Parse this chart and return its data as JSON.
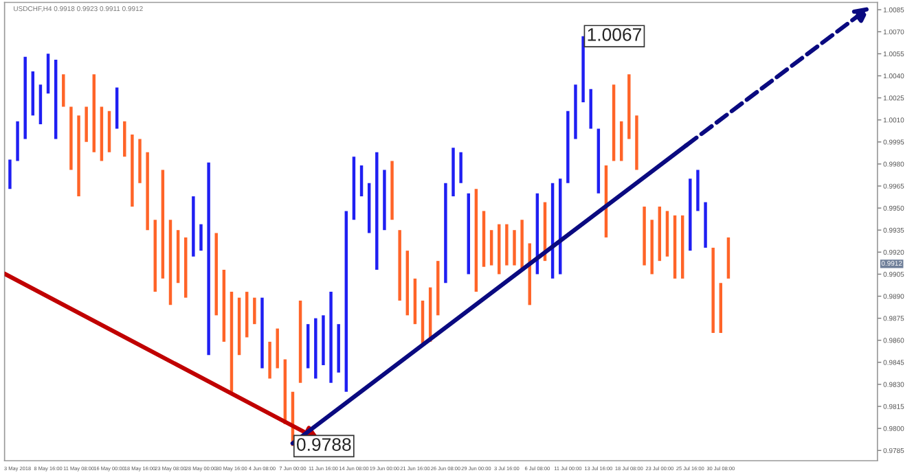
{
  "chart_data": {
    "type": "bar",
    "title": "USDCHF,H4 0.9918 0.9923 0.9911 0.9912",
    "categories": [
      null,
      "3 May 2018",
      null,
      null,
      null,
      "8 May 16:00",
      null,
      null,
      null,
      "11 May 08:00",
      null,
      null,
      null,
      "16 May 00:00",
      null,
      null,
      null,
      "18 May 16:00",
      null,
      null,
      null,
      "23 May 08:00",
      null,
      null,
      null,
      "28 May 00:00",
      null,
      null,
      null,
      "30 May 16:00",
      null,
      null,
      null,
      "4 Jun 08:00",
      null,
      null,
      null,
      "7 Jun 00:00",
      null,
      null,
      null,
      "11 Jun 16:00",
      null,
      null,
      null,
      "14 Jun 08:00",
      null,
      null,
      null,
      "19 Jun 00:00",
      null,
      null,
      null,
      "21 Jun 16:00",
      null,
      null,
      null,
      "26 Jun 08:00",
      null,
      null,
      null,
      "29 Jun 00:00",
      null,
      null,
      null,
      "3 Jul 16:00",
      null,
      null,
      null,
      "6 Jul 08:00",
      null,
      null,
      null,
      "11 Jul 00:00",
      null,
      null,
      null,
      "13 Jul 16:00",
      null,
      null,
      null,
      "18 Jul 08:00",
      null,
      null,
      null,
      "23 Jul 00:00",
      null,
      null,
      null,
      "25 Jul 16:00",
      null,
      null,
      null,
      "30 Jul 08:00",
      null,
      null,
      null,
      null,
      null,
      null,
      null,
      null,
      null,
      null,
      null,
      null,
      null,
      null,
      null,
      null,
      null,
      null,
      null,
      null
    ],
    "series": [
      {
        "base": [
          0.9963,
          0.9982,
          0.9997,
          1.0013,
          1.0007,
          1.0028,
          0.9997,
          1.0019,
          0.9976,
          0.9958,
          0.9995,
          0.9988,
          0.9982,
          0.9988,
          1.0004,
          0.9985,
          0.9951,
          0.9967,
          0.9935,
          0.9893,
          0.9902,
          0.9884,
          0.9899,
          0.9889,
          0.9917,
          0.9921,
          0.985,
          0.9877,
          0.9859,
          0.9825,
          0.985,
          0.9862,
          0.9871,
          0.9841,
          0.9834,
          0.9841,
          0.9803,
          0.9788,
          0.9831,
          0.9841,
          0.9834,
          0.9843,
          0.9831,
          0.9838,
          0.9825,
          0.9942,
          0.9958,
          0.9933,
          0.9908,
          0.9935,
          0.9942,
          0.9887,
          0.9877,
          0.9871,
          0.9856,
          0.9859,
          0.9877,
          0.9899,
          0.9958,
          0.9967,
          0.9905,
          0.9893,
          0.991,
          0.9911,
          0.9905,
          0.9911,
          0.9911,
          0.9908,
          0.9884,
          0.9905,
          0.9914,
          0.9902,
          0.9905,
          0.9967,
          0.9997,
          1.0022,
          1.0004,
          0.996,
          0.993,
          0.9982,
          0.9982,
          0.9997,
          0.9976,
          0.9911,
          0.9905,
          0.9914,
          0.9917,
          0.9902,
          0.9902,
          0.9921,
          0.9948,
          0.9923,
          0.9865,
          0.9865,
          0.9902,
          null,
          null,
          null,
          null,
          null,
          null,
          null,
          null,
          null,
          null,
          null,
          null,
          null,
          null,
          null,
          null,
          null,
          null,
          null
        ],
        "values": [
          0.002,
          0.0027,
          0.0056,
          0.003,
          0.0027,
          0.0027,
          0.0054,
          0.0022,
          0.0043,
          0.0055,
          0.0024,
          0.0053,
          0.0037,
          0.0028,
          0.0028,
          0.0024,
          0.0049,
          0.003,
          0.0053,
          0.0049,
          0.0074,
          0.0058,
          0.0036,
          0.0041,
          0.0041,
          0.0018,
          0.0131,
          0.0056,
          0.0049,
          0.0068,
          0.0039,
          0.0031,
          0.0018,
          0.0048,
          0.0025,
          0.0027,
          0.0044,
          0.0037,
          0.0056,
          0.003,
          0.0041,
          0.0034,
          0.0062,
          0.0033,
          0.0123,
          0.0043,
          0.0021,
          0.0034,
          0.008,
          0.0041,
          0.004,
          0.0048,
          0.0044,
          0.0031,
          0.0031,
          0.0037,
          0.0037,
          0.0068,
          0.0033,
          0.0021,
          0.0055,
          0.007,
          0.0038,
          0.0024,
          0.0034,
          0.0028,
          0.0024,
          0.0034,
          0.0042,
          0.0055,
          0.004,
          0.0065,
          0.0065,
          0.0049,
          0.0037,
          0.0045,
          0.0027,
          0.0044,
          0.0049,
          0.0052,
          0.0027,
          0.0044,
          0.0037,
          0.004,
          0.0037,
          0.0037,
          0.0031,
          0.0043,
          0.0043,
          0.0049,
          0.0028,
          0.0031,
          0.0058,
          0.0034,
          0.0028,
          null,
          null,
          null,
          null,
          null,
          null,
          null,
          null,
          null,
          null,
          null,
          null,
          null,
          null,
          null,
          null,
          null,
          null,
          null
        ],
        "colors": [
          "#1f1ff2",
          "#1f1ff2",
          "#1f1ff2",
          "#1f1ff2",
          "#1f1ff2",
          "#1f1ff2",
          "#1f1ff2",
          "#ff6428",
          "#ff6428",
          "#ff6428",
          "#ff6428",
          "#ff6428",
          "#ff6428",
          "#ff6428",
          "#1f1ff2",
          "#ff6428",
          "#ff6428",
          "#ff6428",
          "#ff6428",
          "#ff6428",
          "#ff6428",
          "#ff6428",
          "#ff6428",
          "#ff6428",
          "#1f1ff2",
          "#1f1ff2",
          "#1f1ff2",
          "#ff6428",
          "#ff6428",
          "#ff6428",
          "#ff6428",
          "#ff6428",
          "#ff6428",
          "#1f1ff2",
          "#ff6428",
          "#ff6428",
          "#ff6428",
          "#ff6428",
          "#ff6428",
          "#1f1ff2",
          "#1f1ff2",
          "#1f1ff2",
          "#1f1ff2",
          "#1f1ff2",
          "#1f1ff2",
          "#1f1ff2",
          "#1f1ff2",
          "#1f1ff2",
          "#1f1ff2",
          "#1f1ff2",
          "#ff6428",
          "#ff6428",
          "#ff6428",
          "#ff6428",
          "#ff6428",
          "#ff6428",
          "#ff6428",
          "#1f1ff2",
          "#1f1ff2",
          "#1f1ff2",
          "#1f1ff2",
          "#ff6428",
          "#ff6428",
          "#ff6428",
          "#ff6428",
          "#ff6428",
          "#ff6428",
          "#ff6428",
          "#ff6428",
          "#1f1ff2",
          "#ff6428",
          "#1f1ff2",
          "#1f1ff2",
          "#1f1ff2",
          "#1f1ff2",
          "#1f1ff2",
          "#1f1ff2",
          "#1f1ff2",
          "#ff6428",
          "#ff6428",
          "#ff6428",
          "#ff6428",
          "#ff6428",
          "#ff6428",
          "#ff6428",
          "#ff6428",
          "#ff6428",
          "#ff6428",
          "#ff6428",
          "#1f1ff2",
          "#1f1ff2",
          "#1f1ff2",
          "#ff6428",
          "#ff6428",
          "#ff6428",
          null,
          null,
          null,
          null,
          null,
          null,
          null,
          null,
          null,
          null,
          null,
          null,
          null,
          null,
          null,
          null,
          null,
          null,
          null
        ]
      }
    ],
    "ylim": [
      0.9778,
      1.009
    ],
    "yticks": [
      1.0085,
      {
        "value": 1.007,
        "label": "1.0070"
      },
      1.0055,
      {
        "value": 1.004,
        "label": "1.0040"
      },
      1.0025,
      {
        "value": 1.001,
        "label": "1.0010"
      },
      0.9995,
      {
        "value": 0.998,
        "label": "0.9980"
      },
      0.9965,
      {
        "value": 0.995,
        "label": "0.9950"
      },
      0.9935,
      {
        "value": 0.992,
        "label": "0.9920"
      },
      0.9905,
      {
        "value": 0.989,
        "label": "0.9890"
      },
      0.9875,
      {
        "value": 0.986,
        "label": "0.9860"
      },
      0.9845,
      {
        "value": 0.983,
        "label": "0.9830"
      },
      0.9815,
      {
        "value": 0.98,
        "label": "0.9800"
      },
      0.9785
    ],
    "annotations": [
      "1.0067",
      "0.9788",
      {
        "text": "0.9912",
        "y": 0.9912
      }
    ],
    "grid": false,
    "legend": false
  }
}
